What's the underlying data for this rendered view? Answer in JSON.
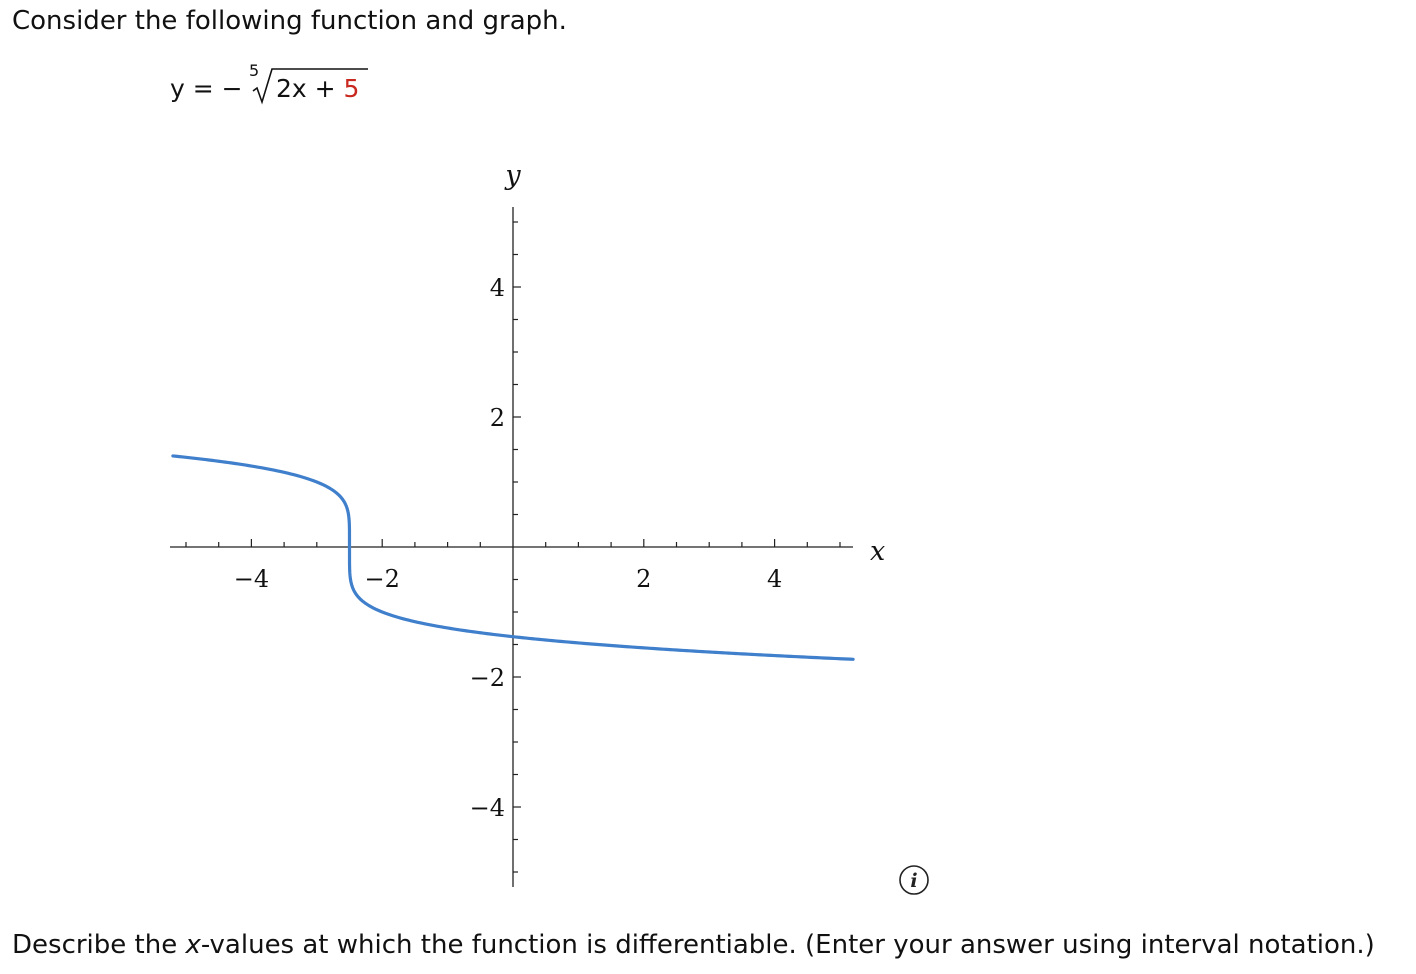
{
  "prompt": {
    "text": "Consider the following function and graph."
  },
  "equation": {
    "lhs": "y = −",
    "root_index": "5",
    "radicand_left": "2x + ",
    "radicand_constant": "5",
    "constant_color": "#c8281e"
  },
  "chart_data": {
    "type": "line",
    "title": "",
    "xlabel": "x",
    "ylabel": "y",
    "xlim": [
      -5.2,
      5.2
    ],
    "ylim": [
      -5.0,
      5.0
    ],
    "x_ticks": [
      -4,
      -2,
      2,
      4
    ],
    "x_tick_labels": [
      "−4",
      "−2",
      "2",
      "4"
    ],
    "y_ticks": [
      -4,
      -2,
      2,
      4
    ],
    "y_tick_labels": [
      "−4",
      "−2",
      "2",
      "4"
    ],
    "grid": false,
    "series": [
      {
        "color": "#3f7fcb",
        "function": "y = -(2x + 5)^(1/5)",
        "x_range": [
          -5.2,
          5.2
        ],
        "points": [
          [
            -5.2,
            1.414
          ],
          [
            -4.0,
            1.246
          ],
          [
            -3.0,
            1.0
          ],
          [
            -2.6,
            0.833
          ],
          [
            -2.5,
            0.0
          ],
          [
            -2.4,
            -0.631
          ],
          [
            -2.0,
            -1.0
          ],
          [
            -1.0,
            -1.246
          ],
          [
            0.0,
            -1.38
          ],
          [
            1.0,
            -1.476
          ],
          [
            2.0,
            -1.552
          ],
          [
            3.0,
            -1.615
          ],
          [
            4.0,
            -1.668
          ],
          [
            5.2,
            -1.724
          ]
        ]
      }
    ]
  },
  "info_icon": {
    "icon": "info-icon",
    "glyph": "i"
  },
  "question": {
    "text_before": "Describe the ",
    "var": "x",
    "text_after": "-values at which the function is differentiable. (Enter your answer using interval notation.)"
  }
}
